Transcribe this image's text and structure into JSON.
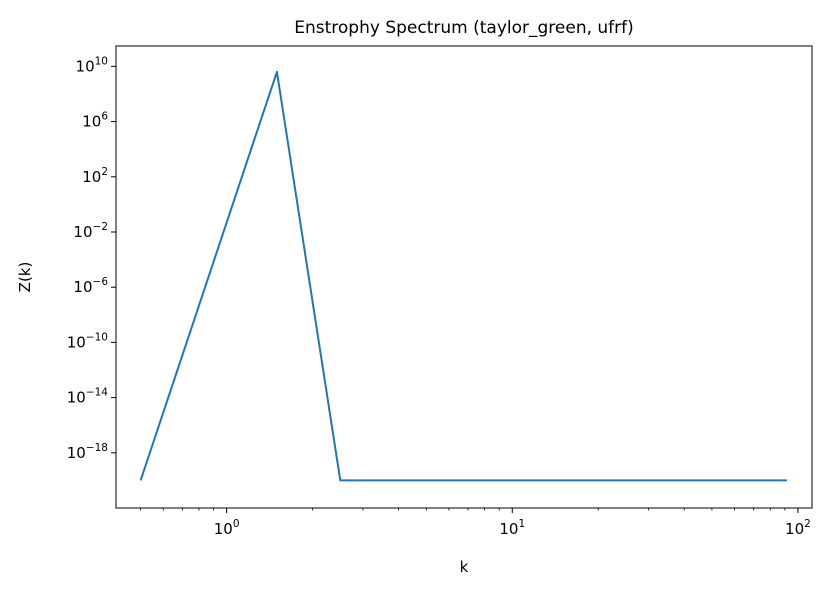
{
  "chart_data": {
    "type": "line",
    "title": "Enstrophy Spectrum (taylor_green, ufrf)",
    "xlabel": "k",
    "ylabel": "Z(k)",
    "xscale": "log",
    "yscale": "log",
    "xlim": [
      0.41,
      112
    ],
    "ylim": [
      1e-22,
      300000000000.0
    ],
    "grid": false,
    "line_color": "#1f77b4",
    "x_ticks": [
      {
        "value": 1,
        "base": "10",
        "exp": "0"
      },
      {
        "value": 10,
        "base": "10",
        "exp": "1"
      },
      {
        "value": 100,
        "base": "10",
        "exp": "2"
      }
    ],
    "y_ticks": [
      {
        "value": 10000000000.0,
        "base": "10",
        "exp": "10"
      },
      {
        "value": 1000000.0,
        "base": "10",
        "exp": "6"
      },
      {
        "value": 100.0,
        "base": "10",
        "exp": "2"
      },
      {
        "value": 0.01,
        "base": "10",
        "exp": "−2"
      },
      {
        "value": 1e-06,
        "base": "10",
        "exp": "−6"
      },
      {
        "value": 1e-10,
        "base": "10",
        "exp": "−10"
      },
      {
        "value": 1e-14,
        "base": "10",
        "exp": "−14"
      },
      {
        "value": 1e-18,
        "base": "10",
        "exp": "−18"
      }
    ],
    "series": [
      {
        "x": [
          0.5,
          1.5,
          2.5,
          3.5,
          4.5,
          5.5,
          6.5,
          7.5,
          8.5,
          9.5,
          10.5,
          11.5,
          12.5,
          13.5,
          14.5,
          15.5,
          16.5,
          17.5,
          18.5,
          19.5,
          20.5,
          21.5,
          22.5,
          23.5,
          24.5,
          25.5,
          26.5,
          27.5,
          28.5,
          29.5,
          30.5,
          31.5,
          32.5,
          33.5,
          34.5,
          35.5,
          36.5,
          37.5,
          38.5,
          39.5,
          40.5,
          41.5,
          42.5,
          43.5,
          44.5,
          45.5,
          46.5,
          47.5,
          48.5,
          49.5,
          50.5,
          51.5,
          52.5,
          53.5,
          54.5,
          55.5,
          56.5,
          57.5,
          58.5,
          59.5,
          60.5,
          61.5,
          62.5,
          63.5,
          64.5,
          65.5,
          66.5,
          67.5,
          68.5,
          69.5,
          70.5,
          71.5,
          72.5,
          73.5,
          74.5,
          75.5,
          76.5,
          77.5,
          78.5,
          79.5,
          80.5,
          81.5,
          82.5,
          83.5,
          84.5,
          85.5,
          86.5,
          87.5,
          88.5,
          89.5,
          90.5,
          91.5
        ],
        "y": [
          1e-20,
          4000000000.0,
          1e-20,
          1e-20,
          1e-20,
          1e-20,
          1e-20,
          1e-20,
          1e-20,
          1e-20,
          1e-20,
          1e-20,
          1e-20,
          1e-20,
          1e-20,
          1e-20,
          1e-20,
          1e-20,
          1e-20,
          1e-20,
          1e-20,
          1e-20,
          1e-20,
          1e-20,
          1e-20,
          1e-20,
          1e-20,
          1e-20,
          1e-20,
          1e-20,
          1e-20,
          1e-20,
          1e-20,
          1e-20,
          1e-20,
          1e-20,
          1e-20,
          1e-20,
          1e-20,
          1e-20,
          1e-20,
          1e-20,
          1e-20,
          1e-20,
          1e-20,
          1e-20,
          1e-20,
          1e-20,
          1e-20,
          1e-20,
          1e-20,
          1e-20,
          1e-20,
          1e-20,
          1e-20,
          1e-20,
          1e-20,
          1e-20,
          1e-20,
          1e-20,
          1e-20,
          1e-20,
          1e-20,
          1e-20,
          1e-20,
          1e-20,
          1e-20,
          1e-20,
          1e-20,
          1e-20,
          1e-20,
          1e-20,
          1e-20,
          1e-20,
          1e-20,
          1e-20,
          1e-20,
          1e-20,
          1e-20,
          1e-20,
          1e-20,
          1e-20,
          1e-20,
          1e-20,
          1e-20,
          1e-20,
          1e-20,
          1e-20,
          1e-20,
          1e-20,
          1e-20,
          1e-20
        ]
      }
    ]
  }
}
